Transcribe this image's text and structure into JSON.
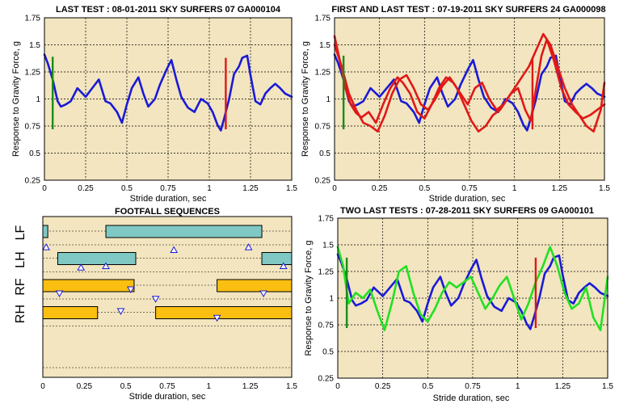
{
  "colors": {
    "plot_bg": "#f2e5bf",
    "blue": "#1a1ad6",
    "red": "#e01818",
    "green": "#1a8c1a",
    "lime": "#22e022",
    "teal": "#80c8c4",
    "orange": "#fbbf12",
    "triangle": "#1a1ad6"
  },
  "chart_data": [
    {
      "type": "line",
      "title": "LAST TEST : 08-01-2011 SKY SURFERS 07 GA000104",
      "xlabel": "Stride duration, sec",
      "ylabel": "Response to Gravity Force, g",
      "xlim": [
        0,
        1.5
      ],
      "ylim": [
        0.25,
        1.75
      ],
      "xticks": [
        "0",
        "0.25",
        "0.5",
        "0.75",
        "1",
        "1.25",
        "1.5"
      ],
      "yticks": [
        "0.25",
        "0.5",
        "0.75",
        "1",
        "1.25",
        "1.5",
        "1.75"
      ],
      "grid": true,
      "series": [
        {
          "color": "blue",
          "x": [
            0,
            0.02,
            0.05,
            0.08,
            0.1,
            0.13,
            0.16,
            0.2,
            0.25,
            0.3,
            0.33,
            0.37,
            0.4,
            0.44,
            0.47,
            0.5,
            0.53,
            0.57,
            0.6,
            0.63,
            0.67,
            0.7,
            0.74,
            0.77,
            0.8,
            0.83,
            0.87,
            0.91,
            0.95,
            0.99,
            1.02,
            1.05,
            1.07,
            1.09,
            1.12,
            1.15,
            1.18,
            1.2,
            1.23,
            1.25,
            1.28,
            1.31,
            1.34,
            1.37,
            1.4,
            1.43,
            1.46,
            1.5
          ],
          "y": [
            1.41,
            1.33,
            1.18,
            0.98,
            0.93,
            0.95,
            0.98,
            1.1,
            1.02,
            1.12,
            1.18,
            0.98,
            0.96,
            0.88,
            0.78,
            0.95,
            1.1,
            1.2,
            1.05,
            0.93,
            1.0,
            1.13,
            1.27,
            1.36,
            1.18,
            1.02,
            0.92,
            0.88,
            1.0,
            0.96,
            0.88,
            0.76,
            0.71,
            0.82,
            1.0,
            1.23,
            1.3,
            1.38,
            1.4,
            1.22,
            0.98,
            0.95,
            1.05,
            1.1,
            1.14,
            1.1,
            1.05,
            1.02
          ]
        }
      ],
      "markers": [
        {
          "color": "green",
          "x": 0.05,
          "y": [
            0.72,
            1.39
          ]
        },
        {
          "color": "red",
          "x": 1.1,
          "y": [
            0.72,
            1.38
          ]
        }
      ]
    },
    {
      "type": "line",
      "title": "FIRST AND LAST TEST : 07-19-2011 SKY SURFERS 24 GA000098",
      "xlabel": "Stride duration, sec",
      "ylabel": "Response to Gravity Force, g",
      "xlim": [
        0,
        1.5
      ],
      "ylim": [
        0.25,
        1.75
      ],
      "xticks": [
        "0",
        "0.25",
        "0.5",
        "0.75",
        "1",
        "1.25",
        "1.5"
      ],
      "yticks": [
        "0.25",
        "0.5",
        "0.75",
        "1",
        "1.25",
        "1.5",
        "1.75"
      ],
      "grid": true,
      "series": [
        {
          "color": "blue",
          "x": [
            0,
            0.02,
            0.05,
            0.08,
            0.1,
            0.13,
            0.16,
            0.2,
            0.25,
            0.3,
            0.33,
            0.37,
            0.4,
            0.44,
            0.47,
            0.5,
            0.53,
            0.57,
            0.6,
            0.63,
            0.67,
            0.7,
            0.74,
            0.77,
            0.8,
            0.83,
            0.87,
            0.91,
            0.95,
            0.99,
            1.02,
            1.05,
            1.07,
            1.09,
            1.12,
            1.15,
            1.18,
            1.2,
            1.23,
            1.25,
            1.28,
            1.31,
            1.34,
            1.37,
            1.4,
            1.43,
            1.46,
            1.5
          ],
          "y": [
            1.41,
            1.33,
            1.18,
            0.98,
            0.93,
            0.95,
            0.98,
            1.1,
            1.02,
            1.12,
            1.18,
            0.98,
            0.96,
            0.88,
            0.78,
            0.95,
            1.1,
            1.2,
            1.05,
            0.93,
            1.0,
            1.13,
            1.27,
            1.36,
            1.18,
            1.02,
            0.92,
            0.88,
            1.0,
            0.96,
            0.88,
            0.76,
            0.71,
            0.82,
            1.0,
            1.23,
            1.3,
            1.38,
            1.4,
            1.22,
            0.98,
            0.95,
            1.05,
            1.1,
            1.14,
            1.1,
            1.05,
            1.02
          ]
        },
        {
          "color": "red",
          "x": [
            0,
            0.03,
            0.06,
            0.09,
            0.12,
            0.15,
            0.19,
            0.23,
            0.27,
            0.31,
            0.35,
            0.38,
            0.42,
            0.46,
            0.5,
            0.54,
            0.58,
            0.62,
            0.66,
            0.7,
            0.74,
            0.78,
            0.82,
            0.86,
            0.9,
            0.94,
            0.98,
            1.02,
            1.06,
            1.09,
            1.12,
            1.15,
            1.18,
            1.22,
            1.26,
            1.3,
            1.34,
            1.38,
            1.42,
            1.46,
            1.5
          ],
          "y": [
            1.58,
            1.35,
            1.1,
            0.95,
            0.87,
            0.83,
            0.88,
            0.78,
            0.95,
            1.1,
            1.2,
            1.15,
            1.05,
            0.88,
            0.82,
            0.95,
            1.1,
            1.2,
            1.15,
            1.05,
            0.95,
            1.1,
            1.15,
            1.0,
            0.9,
            0.95,
            1.05,
            1.1,
            0.9,
            0.8,
            1.1,
            1.4,
            1.55,
            1.35,
            1.1,
            0.95,
            0.88,
            0.82,
            0.85,
            0.9,
            0.95
          ]
        },
        {
          "color": "red",
          "x": [
            0,
            0.04,
            0.08,
            0.12,
            0.16,
            0.2,
            0.24,
            0.28,
            0.32,
            0.36,
            0.4,
            0.44,
            0.48,
            0.52,
            0.56,
            0.6,
            0.64,
            0.68,
            0.72,
            0.76,
            0.8,
            0.84,
            0.88,
            0.92,
            0.96,
            1.0,
            1.04,
            1.08,
            1.12,
            1.16,
            1.2,
            1.24,
            1.28,
            1.32,
            1.36,
            1.4,
            1.44,
            1.48,
            1.5
          ],
          "y": [
            1.5,
            1.3,
            1.05,
            0.9,
            0.78,
            0.75,
            0.7,
            0.85,
            1.05,
            1.18,
            1.22,
            1.1,
            0.95,
            0.9,
            1.0,
            1.12,
            1.2,
            1.1,
            0.95,
            0.8,
            0.7,
            0.75,
            0.85,
            0.9,
            1.0,
            1.1,
            1.2,
            1.3,
            1.45,
            1.6,
            1.5,
            1.3,
            1.1,
            0.95,
            0.85,
            0.75,
            0.7,
            0.9,
            1.15
          ]
        }
      ],
      "markers": [
        {
          "color": "green",
          "x": 0.05,
          "y": [
            0.72,
            1.4
          ]
        },
        {
          "color": "red",
          "x": 1.1,
          "y": [
            0.72,
            1.38
          ]
        }
      ]
    },
    {
      "type": "bar",
      "title": "FOOTFALL SEQUENCES",
      "xlabel": "Stride duration, sec",
      "xlim": [
        0,
        1.5
      ],
      "xticks": [
        "0",
        "0.25",
        "0.5",
        "0.75",
        "1",
        "1.25",
        "1.5"
      ],
      "lanes": [
        "LF",
        "LH",
        "RF",
        "RH"
      ],
      "bars": [
        {
          "lane": 0,
          "start": 0.0,
          "end": 0.03,
          "color": "teal"
        },
        {
          "lane": 0,
          "start": 0.38,
          "end": 1.32,
          "color": "teal"
        },
        {
          "lane": 1,
          "start": 0.09,
          "end": 0.56,
          "color": "teal"
        },
        {
          "lane": 1,
          "start": 1.32,
          "end": 1.5,
          "color": "teal"
        },
        {
          "lane": 2,
          "start": 0.0,
          "end": 0.55,
          "color": "orange"
        },
        {
          "lane": 2,
          "start": 1.05,
          "end": 1.5,
          "color": "orange"
        },
        {
          "lane": 3,
          "start": 0.0,
          "end": 0.33,
          "color": "orange"
        },
        {
          "lane": 3,
          "start": 0.68,
          "end": 1.5,
          "color": "orange"
        }
      ],
      "triangles": [
        {
          "x": 0.02,
          "lane": 0.6,
          "dir": "up"
        },
        {
          "x": 0.38,
          "lane": 1.3,
          "dir": "up"
        },
        {
          "x": 0.79,
          "lane": 0.7,
          "dir": "up"
        },
        {
          "x": 1.24,
          "lane": 0.6,
          "dir": "up"
        },
        {
          "x": 1.45,
          "lane": 1.3,
          "dir": "up"
        },
        {
          "x": 0.23,
          "lane": 1.35,
          "dir": "up"
        },
        {
          "x": 0.1,
          "lane": 2.3,
          "dir": "down"
        },
        {
          "x": 0.53,
          "lane": 2.15,
          "dir": "down"
        },
        {
          "x": 1.33,
          "lane": 2.3,
          "dir": "down"
        },
        {
          "x": 0.68,
          "lane": 2.5,
          "dir": "down"
        },
        {
          "x": 0.47,
          "lane": 2.95,
          "dir": "down"
        },
        {
          "x": 1.05,
          "lane": 3.2,
          "dir": "down"
        }
      ]
    },
    {
      "type": "line",
      "title": "TWO LAST TESTS : 07-28-2011 SKY SURFERS 09 GA000101",
      "xlabel": "Stride duration, sec",
      "ylabel": "Response to Gravity Force, g",
      "xlim": [
        0,
        1.5
      ],
      "ylim": [
        0.25,
        1.75
      ],
      "xticks": [
        "0",
        "0.25",
        "0.5",
        "0.75",
        "1",
        "1.25",
        "1.5"
      ],
      "yticks": [
        "0.25",
        "0.5",
        "0.75",
        "1",
        "1.25",
        "1.5",
        "1.75"
      ],
      "grid": true,
      "series": [
        {
          "color": "blue",
          "x": [
            0,
            0.02,
            0.05,
            0.08,
            0.1,
            0.13,
            0.16,
            0.2,
            0.25,
            0.3,
            0.33,
            0.37,
            0.4,
            0.44,
            0.47,
            0.5,
            0.53,
            0.57,
            0.6,
            0.63,
            0.67,
            0.7,
            0.74,
            0.77,
            0.8,
            0.83,
            0.87,
            0.91,
            0.95,
            0.99,
            1.02,
            1.05,
            1.07,
            1.09,
            1.12,
            1.15,
            1.18,
            1.2,
            1.23,
            1.25,
            1.28,
            1.31,
            1.34,
            1.37,
            1.4,
            1.43,
            1.46,
            1.5
          ],
          "y": [
            1.41,
            1.33,
            1.18,
            0.98,
            0.93,
            0.95,
            0.98,
            1.1,
            1.02,
            1.12,
            1.18,
            0.98,
            0.96,
            0.88,
            0.78,
            0.95,
            1.1,
            1.2,
            1.05,
            0.93,
            1.0,
            1.13,
            1.27,
            1.36,
            1.18,
            1.02,
            0.92,
            0.88,
            1.0,
            0.96,
            0.88,
            0.76,
            0.71,
            0.82,
            1.0,
            1.23,
            1.3,
            1.38,
            1.4,
            1.22,
            0.98,
            0.95,
            1.05,
            1.1,
            1.14,
            1.1,
            1.05,
            1.02
          ]
        },
        {
          "color": "lime",
          "x": [
            0,
            0.03,
            0.06,
            0.1,
            0.14,
            0.18,
            0.22,
            0.26,
            0.3,
            0.34,
            0.38,
            0.42,
            0.46,
            0.5,
            0.54,
            0.58,
            0.62,
            0.66,
            0.7,
            0.74,
            0.78,
            0.82,
            0.86,
            0.9,
            0.94,
            0.98,
            1.02,
            1.06,
            1.1,
            1.14,
            1.18,
            1.22,
            1.26,
            1.3,
            1.34,
            1.38,
            1.42,
            1.46,
            1.5
          ],
          "y": [
            1.48,
            1.3,
            0.95,
            1.05,
            1.0,
            1.08,
            0.88,
            0.7,
            0.95,
            1.25,
            1.3,
            1.05,
            0.85,
            0.78,
            0.9,
            1.05,
            1.15,
            1.1,
            1.15,
            1.2,
            1.05,
            0.9,
            1.0,
            1.12,
            1.2,
            1.0,
            0.8,
            0.95,
            1.15,
            1.3,
            1.48,
            1.3,
            1.05,
            0.9,
            0.95,
            1.1,
            0.82,
            0.7,
            1.2
          ]
        }
      ],
      "markers": [
        {
          "color": "green",
          "x": 0.05,
          "y": [
            0.72,
            1.38
          ]
        },
        {
          "color": "red",
          "x": 1.1,
          "y": [
            0.72,
            1.38
          ]
        }
      ]
    }
  ]
}
